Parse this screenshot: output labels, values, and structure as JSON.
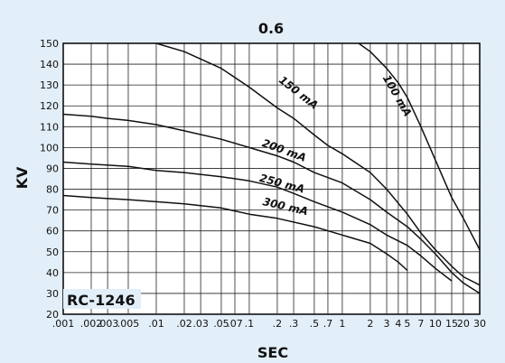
{
  "chart_data": {
    "type": "line",
    "title": "0.6",
    "xlabel": "SEC",
    "ylabel": "KV",
    "annotation": "RC-1246",
    "x_scale": "log",
    "xlim": [
      0.001,
      30
    ],
    "ylim": [
      20,
      150
    ],
    "grid": true,
    "x_ticks": [
      {
        "v": 0.001,
        "label": ".001"
      },
      {
        "v": 0.002,
        "label": ".002"
      },
      {
        "v": 0.003,
        "label": ".003"
      },
      {
        "v": 0.005,
        "label": ".005"
      },
      {
        "v": 0.01,
        "label": ".01"
      },
      {
        "v": 0.02,
        "label": ".02"
      },
      {
        "v": 0.03,
        "label": ".03"
      },
      {
        "v": 0.05,
        "label": ".05"
      },
      {
        "v": 0.07,
        "label": ".07"
      },
      {
        "v": 0.1,
        "label": ".1"
      },
      {
        "v": 0.2,
        "label": ".2"
      },
      {
        "v": 0.3,
        "label": ".3"
      },
      {
        "v": 0.5,
        "label": ".5"
      },
      {
        "v": 0.7,
        "label": ".7"
      },
      {
        "v": 1,
        "label": "1"
      },
      {
        "v": 2,
        "label": "2"
      },
      {
        "v": 3,
        "label": "3"
      },
      {
        "v": 4,
        "label": "4"
      },
      {
        "v": 5,
        "label": "5"
      },
      {
        "v": 7,
        "label": "7"
      },
      {
        "v": 10,
        "label": "10"
      },
      {
        "v": 15,
        "label": "15"
      },
      {
        "v": 20,
        "label": "20"
      },
      {
        "v": 30,
        "label": "30"
      }
    ],
    "y_ticks": [
      20,
      30,
      40,
      50,
      60,
      70,
      80,
      90,
      100,
      110,
      120,
      130,
      140,
      150
    ],
    "series": [
      {
        "name": "100 mA",
        "label_pos": {
          "x": 3.6,
          "y": 124
        },
        "label_angle": 60,
        "points": [
          [
            1.5,
            150
          ],
          [
            2,
            146
          ],
          [
            3,
            138
          ],
          [
            4,
            131
          ],
          [
            5,
            124
          ],
          [
            7,
            110
          ],
          [
            10,
            94
          ],
          [
            15,
            76
          ],
          [
            20,
            66
          ],
          [
            30,
            51
          ]
        ]
      },
      {
        "name": "150 mA",
        "label_pos": {
          "x": 0.32,
          "y": 125
        },
        "label_angle": 38,
        "points": [
          [
            0.01,
            150
          ],
          [
            0.02,
            146
          ],
          [
            0.05,
            138
          ],
          [
            0.1,
            129
          ],
          [
            0.2,
            119
          ],
          [
            0.3,
            114
          ],
          [
            0.5,
            106
          ],
          [
            0.7,
            101
          ],
          [
            1,
            97
          ],
          [
            2,
            88
          ],
          [
            3,
            80
          ],
          [
            5,
            68
          ],
          [
            7,
            59
          ],
          [
            10,
            51
          ],
          [
            15,
            43
          ],
          [
            20,
            38
          ],
          [
            30,
            34
          ]
        ]
      },
      {
        "name": "200 mA",
        "label_pos": {
          "x": 0.23,
          "y": 97
        },
        "label_angle": 20,
        "points": [
          [
            0.001,
            116
          ],
          [
            0.002,
            115
          ],
          [
            0.003,
            114
          ],
          [
            0.005,
            113
          ],
          [
            0.01,
            111
          ],
          [
            0.02,
            108
          ],
          [
            0.05,
            104
          ],
          [
            0.1,
            100
          ],
          [
            0.2,
            96
          ],
          [
            0.3,
            93
          ],
          [
            0.5,
            88
          ],
          [
            1,
            83
          ],
          [
            2,
            75
          ],
          [
            3,
            69
          ],
          [
            5,
            62
          ],
          [
            7,
            56
          ],
          [
            10,
            49
          ],
          [
            15,
            40
          ],
          [
            20,
            35
          ],
          [
            30,
            30
          ]
        ]
      },
      {
        "name": "250 mA",
        "label_pos": {
          "x": 0.22,
          "y": 81
        },
        "label_angle": 15,
        "points": [
          [
            0.001,
            93
          ],
          [
            0.002,
            92
          ],
          [
            0.005,
            91
          ],
          [
            0.01,
            89
          ],
          [
            0.02,
            88
          ],
          [
            0.05,
            86
          ],
          [
            0.1,
            84
          ],
          [
            0.2,
            81
          ],
          [
            0.3,
            78
          ],
          [
            0.5,
            74
          ],
          [
            1,
            69
          ],
          [
            2,
            63
          ],
          [
            3,
            58
          ],
          [
            5,
            53
          ],
          [
            7,
            48
          ],
          [
            10,
            42
          ],
          [
            15,
            36
          ]
        ]
      },
      {
        "name": "300 mA",
        "label_pos": {
          "x": 0.24,
          "y": 70
        },
        "label_angle": 13,
        "points": [
          [
            0.001,
            77
          ],
          [
            0.002,
            76
          ],
          [
            0.005,
            75
          ],
          [
            0.01,
            74
          ],
          [
            0.02,
            73
          ],
          [
            0.05,
            71
          ],
          [
            0.1,
            68
          ],
          [
            0.2,
            66
          ],
          [
            0.5,
            62
          ],
          [
            1,
            58
          ],
          [
            2,
            54
          ],
          [
            3,
            49
          ],
          [
            4,
            45
          ],
          [
            5,
            41
          ]
        ]
      }
    ]
  }
}
